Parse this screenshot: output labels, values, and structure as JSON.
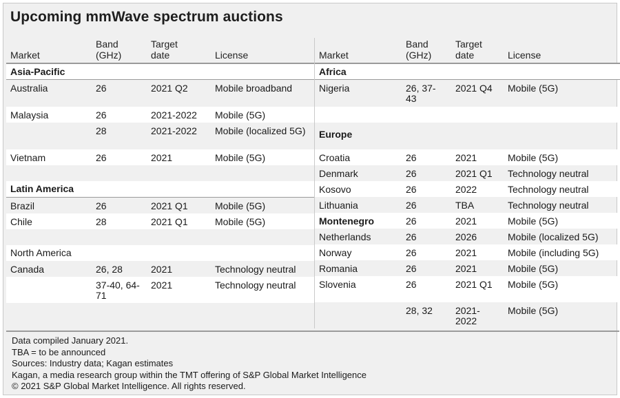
{
  "title": "Upcoming mmWave spectrum auctions",
  "headers": {
    "market": "Market",
    "band_l1": "Band",
    "band_l2": "(GHz)",
    "date_l1": "Target",
    "date_l2": "date",
    "license": "License"
  },
  "left": {
    "sections": [
      {
        "name": "Asia-Pacific"
      },
      {
        "name": "Latin America"
      },
      {
        "name": "North America"
      }
    ],
    "rows": {
      "australia": {
        "market": "Australia",
        "band": "26",
        "date": "2021 Q2",
        "license": "Mobile broadband"
      },
      "malaysia1": {
        "market": "Malaysia",
        "band": "26",
        "date": "2021-2022",
        "license": "Mobile (5G)"
      },
      "malaysia2": {
        "market": "",
        "band": "28",
        "date": "2021-2022",
        "license": "Mobile (localized 5G)"
      },
      "vietnam": {
        "market": "Vietnam",
        "band": "26",
        "date": "2021",
        "license": "Mobile (5G)"
      },
      "brazil": {
        "market": "Brazil",
        "band": "26",
        "date": "2021 Q1",
        "license": "Mobile (5G)"
      },
      "chile": {
        "market": "Chile",
        "band": "28",
        "date": "2021 Q1",
        "license": "Mobile (5G)"
      },
      "canada1": {
        "market": "Canada",
        "band": "26, 28",
        "date": "2021",
        "license": "Technology neutral"
      },
      "canada2": {
        "market": "",
        "band": "37-40, 64-71",
        "date": "2021",
        "license": "Technology neutral"
      }
    }
  },
  "right": {
    "sections": [
      {
        "name": "Africa"
      },
      {
        "name": "Europe"
      }
    ],
    "rows": {
      "nigeria": {
        "market": "Nigeria",
        "band": "26, 37-43",
        "date": "2021 Q4",
        "license": "Mobile (5G)"
      },
      "croatia": {
        "market": "Croatia",
        "band": "26",
        "date": "2021",
        "license": "Mobile (5G)"
      },
      "denmark": {
        "market": "Denmark",
        "band": "26",
        "date": "2021 Q1",
        "license": "Technology neutral"
      },
      "kosovo": {
        "market": "Kosovo",
        "band": "26",
        "date": "2022",
        "license": "Technology neutral"
      },
      "lithuania": {
        "market": "Lithuania",
        "band": "26",
        "date": "TBA",
        "license": "Technology neutral"
      },
      "montenegro": {
        "market": "Montenegro",
        "band": "26",
        "date": "2021",
        "license": "Mobile (5G)"
      },
      "netherlands": {
        "market": "Netherlands",
        "band": "26",
        "date": "2026",
        "license": "Mobile (localized 5G)"
      },
      "norway": {
        "market": "Norway",
        "band": "26",
        "date": "2021",
        "license": "Mobile (including 5G)"
      },
      "romania": {
        "market": "Romania",
        "band": "26",
        "date": "2021",
        "license": "Mobile (5G)"
      },
      "slovenia1": {
        "market": "Slovenia",
        "band": "26",
        "date": "2021 Q1",
        "license": "Mobile (5G)"
      },
      "slovenia2": {
        "market": "",
        "band": "28, 32",
        "date": "2021-2022",
        "license": "Mobile (5G)"
      }
    }
  },
  "footer": {
    "line1": "Data compiled January 2021.",
    "line2": "TBA = to be announced",
    "line3": "Sources: Industry data; Kagan estimates",
    "line4": "Kagan, a media research group within the TMT offering of S&P Global Market Intelligence",
    "line5": "© 2021 S&P Global Market Intelligence. All rights reserved."
  },
  "chart_data": {
    "type": "table",
    "title": "Upcoming mmWave spectrum auctions",
    "columns": [
      "Market",
      "Band (GHz)",
      "Target date",
      "License"
    ],
    "groups": [
      {
        "region": "Asia-Pacific",
        "rows": [
          [
            "Australia",
            "26",
            "2021 Q2",
            "Mobile broadband"
          ],
          [
            "Malaysia",
            "26",
            "2021-2022",
            "Mobile (5G)"
          ],
          [
            "",
            "28",
            "2021-2022",
            "Mobile (localized 5G)"
          ],
          [
            "Vietnam",
            "26",
            "2021",
            "Mobile (5G)"
          ]
        ]
      },
      {
        "region": "Latin America",
        "rows": [
          [
            "Brazil",
            "26",
            "2021 Q1",
            "Mobile (5G)"
          ],
          [
            "Chile",
            "28",
            "2021 Q1",
            "Mobile (5G)"
          ]
        ]
      },
      {
        "region": "North America",
        "rows": [
          [
            "Canada",
            "26, 28",
            "2021",
            "Technology neutral"
          ],
          [
            "",
            "37-40, 64-71",
            "2021",
            "Technology neutral"
          ]
        ]
      },
      {
        "region": "Africa",
        "rows": [
          [
            "Nigeria",
            "26, 37-43",
            "2021 Q4",
            "Mobile (5G)"
          ]
        ]
      },
      {
        "region": "Europe",
        "rows": [
          [
            "Croatia",
            "26",
            "2021",
            "Mobile (5G)"
          ],
          [
            "Denmark",
            "26",
            "2021 Q1",
            "Technology neutral"
          ],
          [
            "Kosovo",
            "26",
            "2022",
            "Technology neutral"
          ],
          [
            "Lithuania",
            "26",
            "TBA",
            "Technology neutral"
          ],
          [
            "Montenegro",
            "26",
            "2021",
            "Mobile (5G)"
          ],
          [
            "Netherlands",
            "26",
            "2026",
            "Mobile (localized 5G)"
          ],
          [
            "Norway",
            "26",
            "2021",
            "Mobile (including 5G)"
          ],
          [
            "Romania",
            "26",
            "2021",
            "Mobile (5G)"
          ],
          [
            "Slovenia",
            "26",
            "2021 Q1",
            "Mobile (5G)"
          ],
          [
            "",
            "28, 32",
            "2021-2022",
            "Mobile (5G)"
          ]
        ]
      }
    ]
  }
}
